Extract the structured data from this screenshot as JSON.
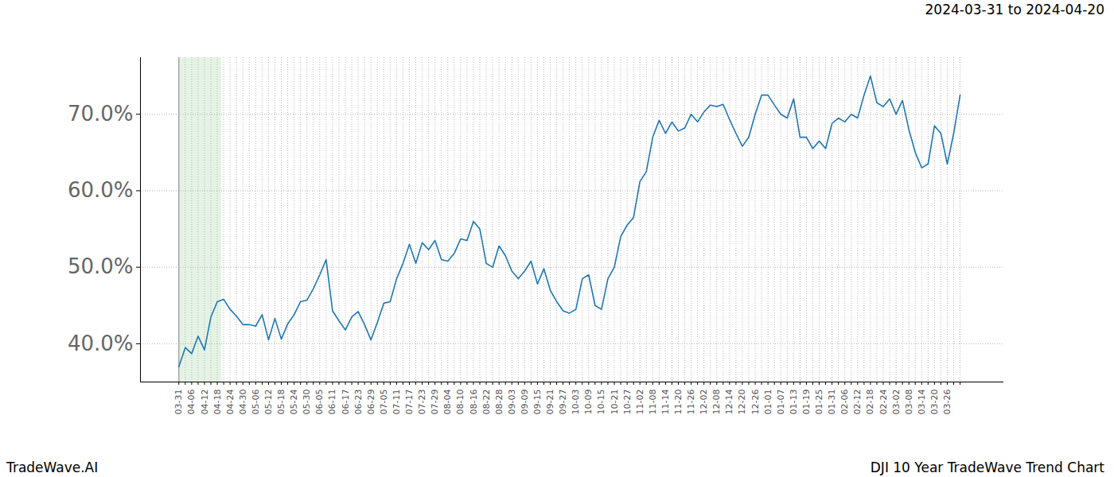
{
  "chart_data": {
    "type": "line",
    "title": "2024-03-31 to 2024-04-20",
    "caption_left": "TradeWave.AI",
    "caption_right": "DJI 10 Year TradeWave Trend Chart",
    "categories": [
      "03-31",
      null,
      "04-06",
      null,
      "04-12",
      null,
      "04-18",
      null,
      "04-24",
      null,
      "04-30",
      null,
      "05-06",
      null,
      "05-12",
      null,
      "05-18",
      null,
      "05-24",
      null,
      "05-30",
      null,
      "06-05",
      null,
      "06-11",
      null,
      "06-17",
      null,
      "06-23",
      null,
      "06-29",
      null,
      "07-05",
      null,
      "07-11",
      null,
      "07-17",
      null,
      "07-23",
      null,
      "07-29",
      null,
      "08-04",
      null,
      "08-10",
      null,
      "08-16",
      null,
      "08-22",
      null,
      "08-28",
      null,
      "09-03",
      null,
      "09-09",
      null,
      "09-15",
      null,
      "09-21",
      null,
      "09-27",
      null,
      "10-03",
      null,
      "10-09",
      null,
      "10-15",
      null,
      "10-21",
      null,
      "10-27",
      null,
      "11-02",
      null,
      "11-08",
      null,
      "11-14",
      null,
      "11-20",
      null,
      "11-26",
      null,
      "12-02",
      null,
      "12-08",
      null,
      "12-14",
      null,
      "12-20",
      null,
      "12-26",
      null,
      "01-01",
      null,
      "01-07",
      null,
      "01-13",
      null,
      "01-19",
      null,
      "01-25",
      null,
      "01-31",
      null,
      "02-06",
      null,
      "02-12",
      null,
      "02-18",
      null,
      "02-24",
      null,
      "03-02",
      null,
      "03-08",
      null,
      "03-14",
      null,
      "03-20",
      null,
      "03-26",
      null,
      null
    ],
    "values": [
      37.0,
      39.5,
      38.7,
      41.0,
      39.2,
      43.5,
      45.5,
      45.8,
      44.5,
      43.6,
      42.5,
      42.5,
      42.3,
      43.8,
      40.5,
      43.3,
      40.6,
      42.6,
      43.8,
      45.5,
      45.7,
      47.2,
      49.0,
      51.0,
      44.3,
      43.0,
      41.8,
      43.5,
      44.2,
      42.5,
      40.5,
      42.8,
      45.3,
      45.5,
      48.5,
      50.5,
      53.0,
      50.5,
      53.2,
      52.3,
      53.5,
      51.0,
      50.8,
      51.8,
      53.7,
      53.5,
      56.0,
      55.0,
      50.5,
      50.0,
      52.8,
      51.5,
      49.5,
      48.5,
      49.5,
      50.8,
      47.8,
      49.8,
      47.0,
      45.5,
      44.3,
      44.0,
      44.5,
      48.5,
      49.0,
      45.0,
      44.5,
      48.5,
      50.0,
      54.0,
      55.5,
      56.5,
      61.2,
      62.5,
      67.0,
      69.2,
      67.5,
      69.0,
      67.8,
      68.2,
      70.0,
      69.0,
      70.3,
      71.2,
      71.0,
      71.3,
      69.3,
      67.5,
      65.8,
      67.0,
      70.0,
      72.5,
      72.5,
      71.2,
      70.0,
      69.5,
      72.0,
      67.0,
      67.0,
      65.5,
      66.5,
      65.5,
      68.8,
      69.5,
      69.0,
      70.0,
      69.5,
      72.5,
      75.0,
      71.5,
      71.0,
      72.0,
      70.0,
      71.8,
      68.0,
      65.0,
      63.0,
      63.5,
      68.5,
      67.5,
      63.5,
      67.5,
      72.5
    ],
    "color": "#1f77b4",
    "ylim": [
      35,
      77.4
    ],
    "yticks": [
      {
        "value": 40,
        "label": "40.0%"
      },
      {
        "value": 50,
        "label": "50.0%"
      },
      {
        "value": 60,
        "label": "60.0%"
      },
      {
        "value": 70,
        "label": "70.0%"
      }
    ],
    "grid": true,
    "highlight": {
      "from": "03-31",
      "to": "04-20"
    }
  }
}
